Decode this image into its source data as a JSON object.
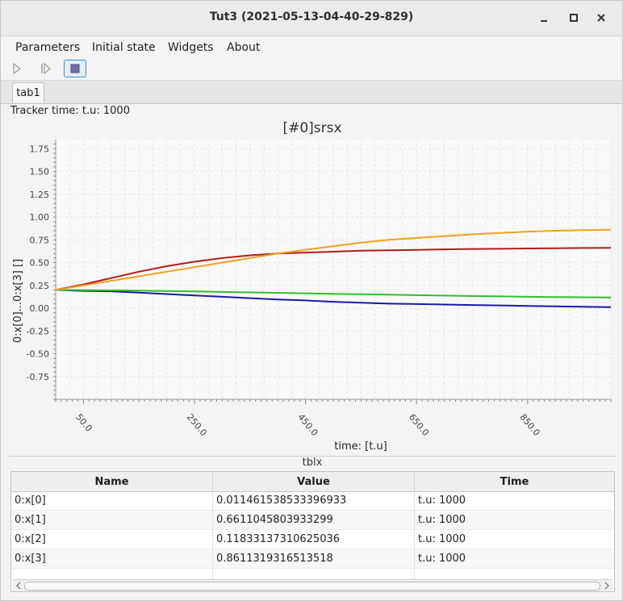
{
  "window": {
    "title": "Tut3 (2021-05-13-04-40-29-829)"
  },
  "menu": [
    "Parameters",
    "Initial state",
    "Widgets",
    "About"
  ],
  "toolbar": {
    "icons": [
      "play-icon",
      "step-icon",
      "stop-icon"
    ]
  },
  "tabs": [
    "tab1"
  ],
  "tracker_time": "Tracker time: t.u: 1000",
  "chart_data": {
    "type": "line",
    "title": "[#0]srsx",
    "xlabel": "time:  [t.u]",
    "ylabel": "0:x[0]...0:x[3] []",
    "xlim": [
      0,
      1000
    ],
    "ylim": [
      -1.0,
      1.85
    ],
    "xticks": [
      "50.0",
      "250.0",
      "450.0",
      "650.0",
      "850.0"
    ],
    "xtick_values": [
      50,
      250,
      450,
      650,
      850
    ],
    "yticks": [
      "1.75",
      "1.50",
      "1.25",
      "1.00",
      "0.75",
      "0.50",
      "0.25",
      "0.00",
      "-0.25",
      "-0.50",
      "-0.75"
    ],
    "ytick_values": [
      1.75,
      1.5,
      1.25,
      1.0,
      0.75,
      0.5,
      0.25,
      0.0,
      -0.25,
      -0.5,
      -0.75
    ],
    "grid": true,
    "series": [
      {
        "color": "#1a1aa8",
        "x": [
          0,
          50,
          100,
          150,
          200,
          250,
          300,
          350,
          400,
          450,
          500,
          550,
          600,
          650,
          700,
          750,
          800,
          850,
          900,
          950,
          1000
        ],
        "values": [
          0.2,
          0.19,
          0.185,
          0.17,
          0.155,
          0.14,
          0.125,
          0.11,
          0.095,
          0.085,
          0.07,
          0.06,
          0.05,
          0.045,
          0.04,
          0.035,
          0.03,
          0.025,
          0.02,
          0.015,
          0.011
        ]
      },
      {
        "color": "#b01c1c",
        "x": [
          0,
          50,
          100,
          150,
          200,
          250,
          300,
          350,
          400,
          450,
          500,
          550,
          600,
          650,
          700,
          750,
          800,
          850,
          900,
          950,
          1000
        ],
        "values": [
          0.2,
          0.26,
          0.33,
          0.4,
          0.46,
          0.51,
          0.55,
          0.58,
          0.6,
          0.61,
          0.62,
          0.63,
          0.635,
          0.64,
          0.645,
          0.65,
          0.652,
          0.655,
          0.658,
          0.66,
          0.661
        ]
      },
      {
        "color": "#2fbf2f",
        "x": [
          0,
          50,
          100,
          150,
          200,
          250,
          300,
          350,
          400,
          450,
          500,
          550,
          600,
          650,
          700,
          750,
          800,
          850,
          900,
          950,
          1000
        ],
        "values": [
          0.2,
          0.198,
          0.196,
          0.192,
          0.188,
          0.183,
          0.178,
          0.173,
          0.168,
          0.163,
          0.158,
          0.153,
          0.148,
          0.143,
          0.138,
          0.133,
          0.129,
          0.125,
          0.122,
          0.12,
          0.118
        ]
      },
      {
        "color": "#f0a020",
        "x": [
          0,
          50,
          100,
          150,
          200,
          250,
          300,
          350,
          400,
          450,
          500,
          550,
          600,
          650,
          700,
          750,
          800,
          850,
          900,
          950,
          1000
        ],
        "values": [
          0.2,
          0.25,
          0.3,
          0.35,
          0.4,
          0.45,
          0.5,
          0.55,
          0.6,
          0.64,
          0.68,
          0.72,
          0.75,
          0.77,
          0.79,
          0.81,
          0.825,
          0.84,
          0.85,
          0.856,
          0.861
        ]
      }
    ]
  },
  "table": {
    "title": "tblx",
    "columns": [
      "Name",
      "Value",
      "Time"
    ],
    "rows": [
      [
        "0:x[0]",
        "0.011461538533396933",
        "t.u: 1000"
      ],
      [
        "0:x[1]",
        "0.6611045803933299",
        "t.u: 1000"
      ],
      [
        "0:x[2]",
        "0.11833137310625036",
        "t.u: 1000"
      ],
      [
        "0:x[3]",
        "0.8611319316513518",
        "t.u: 1000"
      ]
    ]
  }
}
